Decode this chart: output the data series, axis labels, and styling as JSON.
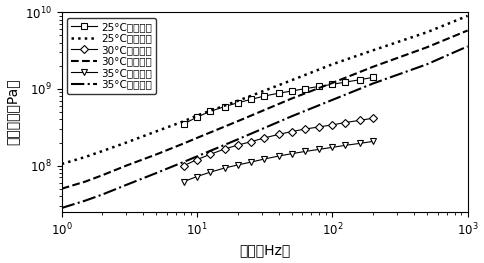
{
  "xlabel": "頻率（Hz）",
  "ylabel": "储能模量（Pa）",
  "xlim_log": [
    0,
    3
  ],
  "ylim_log": [
    7.4,
    10
  ],
  "legend_entries": [
    "25°C试验数据",
    "25°C计算数据",
    "30°C试验数据",
    "30°C计算数据",
    "35°C试验数据",
    "35°C计算数据"
  ],
  "series_25_exp_x": [
    8,
    10,
    12.5,
    16,
    20,
    25,
    31.5,
    40,
    50,
    63,
    80,
    100,
    125,
    160,
    200
  ],
  "series_25_exp_y": [
    350000000.0,
    430000000.0,
    510000000.0,
    590000000.0,
    660000000.0,
    730000000.0,
    810000000.0,
    880000000.0,
    940000000.0,
    1010000000.0,
    1080000000.0,
    1150000000.0,
    1230000000.0,
    1320000000.0,
    1420000000.0
  ],
  "series_25_calc_x": [
    1.0,
    1.5,
    2,
    3,
    5,
    8,
    10,
    20,
    50,
    100,
    200,
    500,
    1000
  ],
  "series_25_calc_y": [
    105000000.0,
    130000000.0,
    155000000.0,
    200000000.0,
    280000000.0,
    380000000.0,
    450000000.0,
    700000000.0,
    1300000000.0,
    2100000000.0,
    3200000000.0,
    5500000000.0,
    9000000000.0
  ],
  "series_30_exp_x": [
    8,
    10,
    12.5,
    16,
    20,
    25,
    31.5,
    40,
    50,
    63,
    80,
    100,
    125,
    160,
    200
  ],
  "series_30_exp_y": [
    100000000.0,
    120000000.0,
    140000000.0,
    165000000.0,
    185000000.0,
    205000000.0,
    230000000.0,
    255000000.0,
    278000000.0,
    300000000.0,
    320000000.0,
    340000000.0,
    365000000.0,
    390000000.0,
    415000000.0
  ],
  "series_30_calc_x": [
    1.0,
    1.5,
    2,
    3,
    5,
    8,
    10,
    20,
    50,
    100,
    200,
    500,
    1000
  ],
  "series_30_calc_y": [
    50000000.0,
    62000000.0,
    75000000.0,
    100000000.0,
    140000000.0,
    195000000.0,
    230000000.0,
    380000000.0,
    750000000.0,
    1200000000.0,
    1950000000.0,
    3500000000.0,
    5800000000.0
  ],
  "series_35_exp_x": [
    8,
    10,
    12.5,
    16,
    20,
    25,
    31.5,
    40,
    50,
    63,
    80,
    100,
    125,
    160,
    200
  ],
  "series_35_exp_y": [
    62000000.0,
    72000000.0,
    82000000.0,
    93000000.0,
    102000000.0,
    111000000.0,
    122000000.0,
    133000000.0,
    143000000.0,
    153000000.0,
    163000000.0,
    173000000.0,
    184000000.0,
    195000000.0,
    207000000.0
  ],
  "series_35_calc_x": [
    1.0,
    1.5,
    2,
    3,
    5,
    8,
    10,
    20,
    50,
    100,
    200,
    500,
    1000
  ],
  "series_35_calc_y": [
    28000000.0,
    35000000.0,
    42000000.0,
    56000000.0,
    80000000.0,
    112000000.0,
    132000000.0,
    220000000.0,
    440000000.0,
    720000000.0,
    1180000000.0,
    2100000000.0,
    3600000000.0
  ],
  "color_all": "#000000",
  "fontsize_label": 10,
  "fontsize_legend": 7.5,
  "fontsize_tick": 8.5
}
